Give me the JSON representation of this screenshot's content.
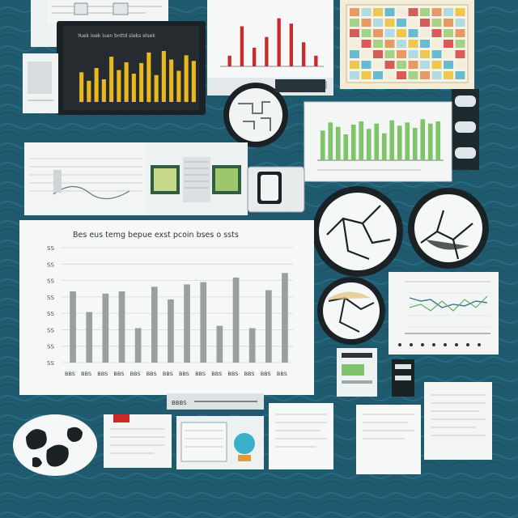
{
  "scene": {
    "background_color": "#1f5a6e",
    "paper_color": "#f4f6f6",
    "accent_colors": {
      "gold_bars": "#e8b820",
      "red_bars": "#cc2a2a",
      "green_bars": "#7fc46a",
      "gray_bars": "#9aa0a2",
      "teal_water": "#2a6f86",
      "dark_frame": "#1b2226"
    }
  },
  "big_chart": {
    "title": "Bes eus temg bepue exst pcoin bses o ssts",
    "y_ticks": [
      "SS",
      "SS",
      "SS",
      "SS",
      "SS",
      "SS",
      "SS",
      "SS"
    ],
    "x_ticks": [
      "BBS",
      "BBS",
      "BBS",
      "BBS",
      "BBS",
      "BBS",
      "BBS",
      "BBS",
      "BBS",
      "BBS",
      "BBS",
      "BBS",
      "BBS",
      "BBS"
    ],
    "values": [
      62,
      44,
      60,
      62,
      30,
      66,
      55,
      68,
      70,
      32,
      74,
      30,
      63,
      78
    ],
    "ymax": 100
  },
  "gold_chart": {
    "header": "Yuek ioek iuen bnttd sleks elsek",
    "values": [
      42,
      30,
      48,
      32,
      64,
      45,
      56,
      40,
      55,
      70,
      38,
      72,
      60,
      44,
      66,
      58
    ],
    "ymax": 80
  },
  "red_chart": {
    "values": [
      20,
      75,
      35,
      55,
      90,
      80,
      45,
      20
    ],
    "ymax": 100
  },
  "green_chart": {
    "values": [
      55,
      70,
      62,
      48,
      66,
      72,
      58,
      68,
      50,
      74,
      64,
      70,
      60,
      76,
      68,
      72
    ],
    "ymax": 90
  },
  "labels": {
    "small_caption": "BBBS"
  }
}
